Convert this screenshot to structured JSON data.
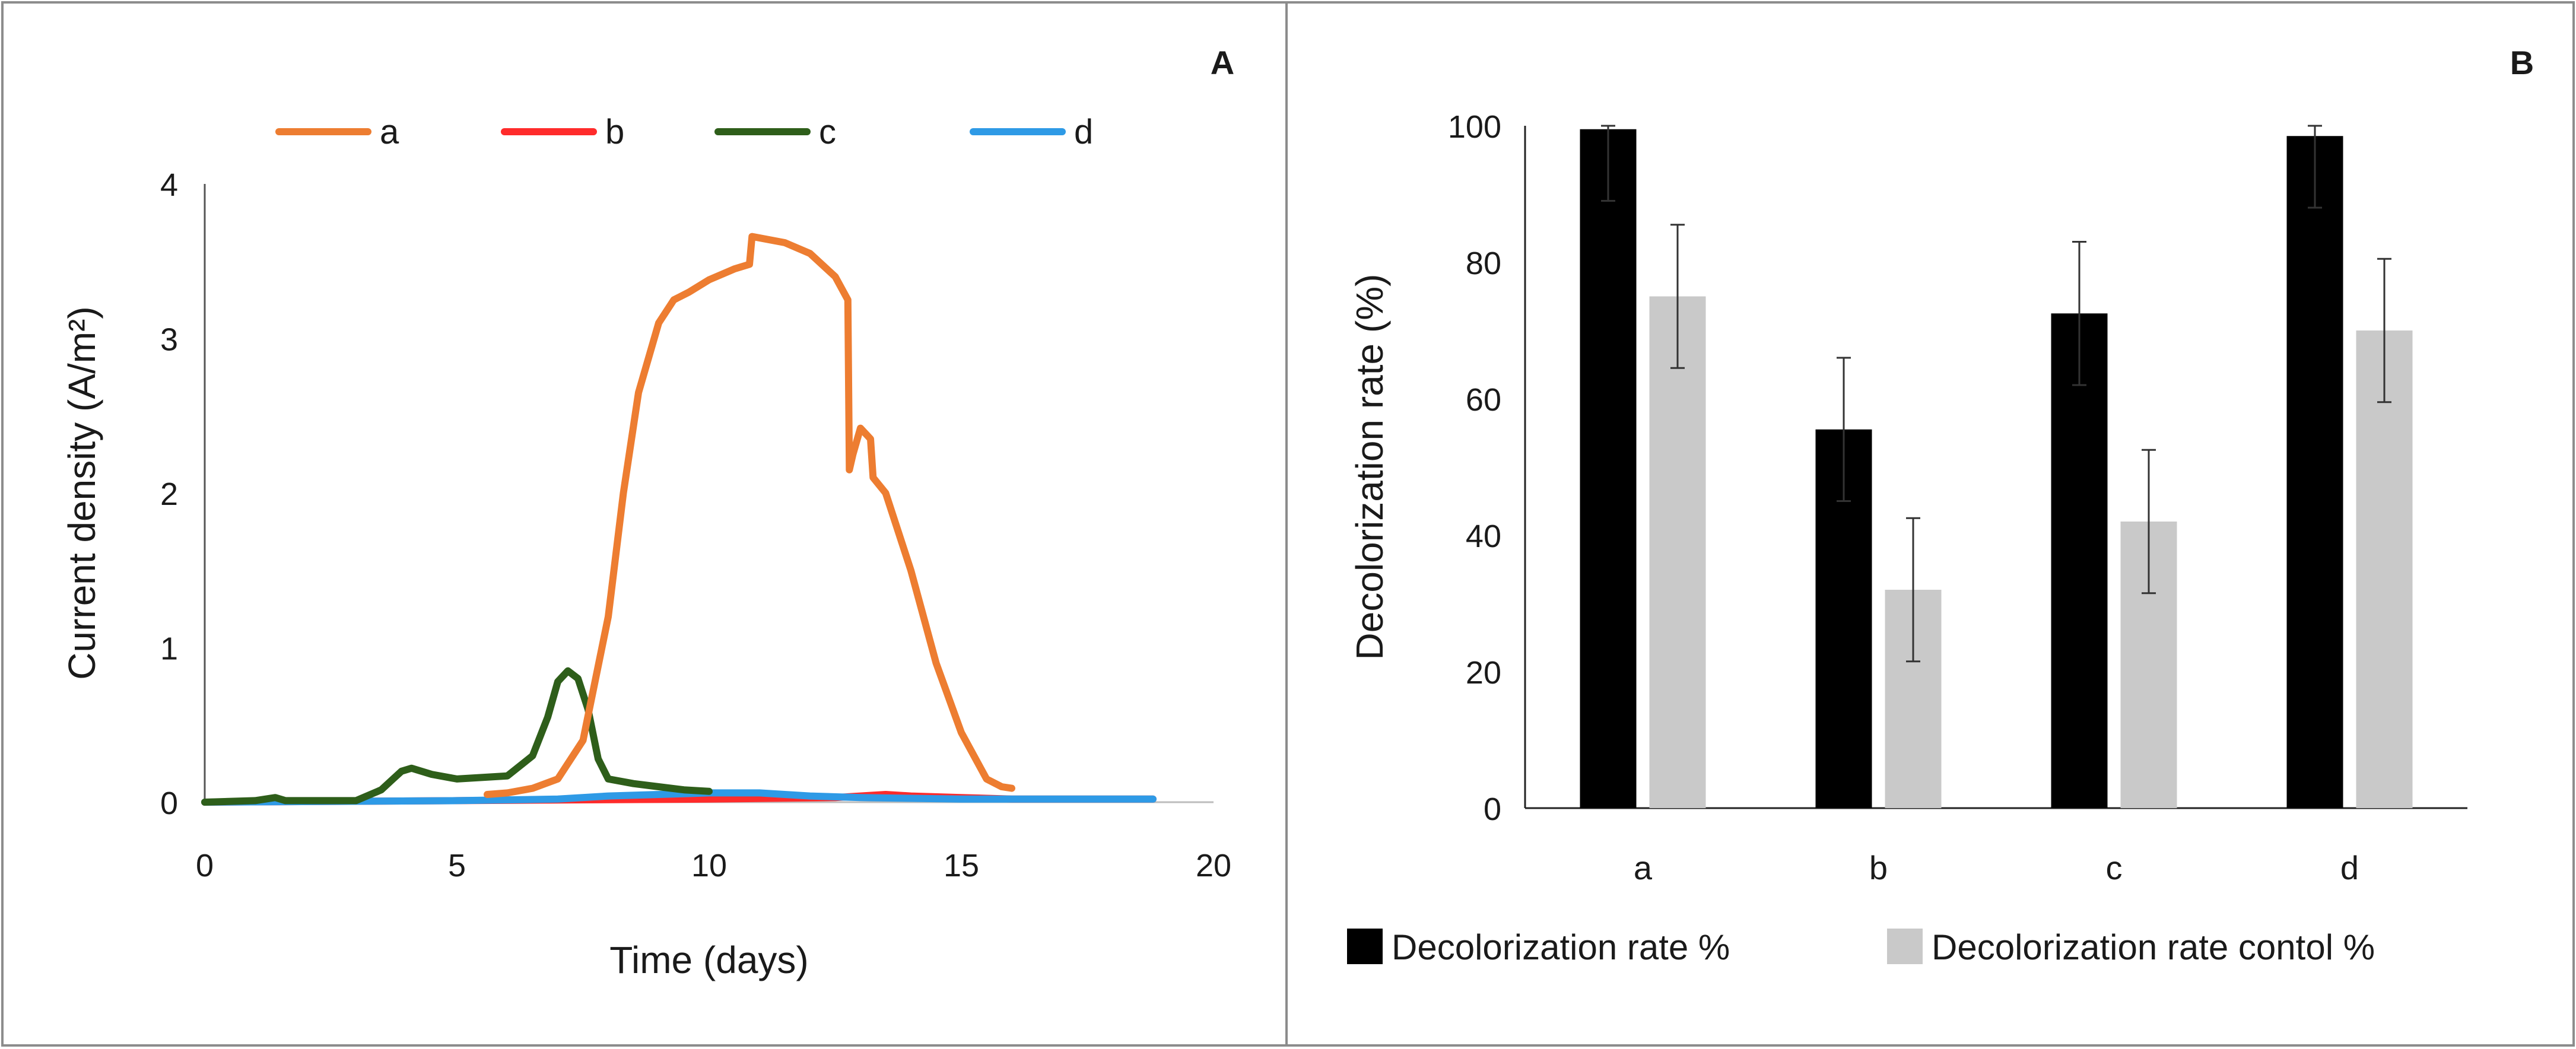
{
  "chart_data": [
    {
      "panel": "A",
      "type": "line",
      "title": "",
      "xlabel": "Time (days)",
      "ylabel": "Current density (A/m²)",
      "xlim": [
        0,
        20
      ],
      "ylim": [
        0,
        4
      ],
      "xticks": [
        "0",
        "5",
        "10",
        "15",
        "20"
      ],
      "yticks": [
        "0",
        "1",
        "2",
        "3",
        "4"
      ],
      "grid": false,
      "legend_position": "top",
      "series": [
        {
          "name": "a",
          "color": "#ED7D31",
          "x": [
            5.6,
            6,
            6.5,
            7,
            7.5,
            8,
            8.3,
            8.6,
            9,
            9.3,
            9.6,
            10,
            10.5,
            10.8,
            10.85,
            11.5,
            12,
            12.5,
            12.75,
            12.78,
            12.85,
            13,
            13.2,
            13.25,
            13.5,
            14,
            14.5,
            15,
            15.5,
            15.8,
            16
          ],
          "y": [
            0.05,
            0.06,
            0.09,
            0.15,
            0.4,
            1.2,
            2.0,
            2.65,
            3.1,
            3.25,
            3.3,
            3.38,
            3.45,
            3.48,
            3.66,
            3.62,
            3.55,
            3.4,
            3.25,
            2.15,
            2.25,
            2.42,
            2.35,
            2.1,
            2.0,
            1.5,
            0.9,
            0.45,
            0.15,
            0.1,
            0.09
          ]
        },
        {
          "name": "b",
          "color": "#FF2B2B",
          "x": [
            0,
            5,
            10,
            12.5,
            13,
            13.5,
            14,
            15,
            16,
            17,
            18.8
          ],
          "y": [
            0,
            0.01,
            0.02,
            0.03,
            0.04,
            0.05,
            0.04,
            0.03,
            0.02,
            0.02,
            0.02
          ]
        },
        {
          "name": "c",
          "color": "#2E5E1A",
          "x": [
            0,
            1,
            1.4,
            1.6,
            3,
            3.5,
            3.7,
            3.9,
            4.1,
            4.5,
            5,
            6,
            6.5,
            6.8,
            7,
            7.2,
            7.4,
            7.6,
            7.8,
            8,
            8.5,
            9,
            9.5,
            10
          ],
          "y": [
            0,
            0.01,
            0.03,
            0.01,
            0.01,
            0.08,
            0.14,
            0.2,
            0.22,
            0.18,
            0.15,
            0.17,
            0.3,
            0.55,
            0.78,
            0.85,
            0.8,
            0.6,
            0.28,
            0.15,
            0.12,
            0.1,
            0.08,
            0.07
          ]
        },
        {
          "name": "d",
          "color": "#2E9AE6",
          "x": [
            0,
            5,
            7,
            8,
            9,
            10,
            11,
            12,
            13,
            15,
            17,
            18.8
          ],
          "y": [
            0,
            0.01,
            0.02,
            0.04,
            0.05,
            0.06,
            0.06,
            0.04,
            0.03,
            0.02,
            0.02,
            0.02
          ]
        }
      ]
    },
    {
      "panel": "B",
      "type": "bar",
      "title": "",
      "xlabel": "",
      "ylabel": "Decolorization rate (%)",
      "categories": [
        "a",
        "b",
        "c",
        "d"
      ],
      "ylim": [
        0,
        100
      ],
      "yticks": [
        "0",
        "20",
        "40",
        "60",
        "80",
        "100"
      ],
      "grid": false,
      "legend_position": "bottom",
      "series": [
        {
          "name": "Decolorization rate %",
          "color": "#000000",
          "values": [
            99.5,
            55.5,
            72.5,
            98.5
          ],
          "errors": [
            10.5,
            10.5,
            10.5,
            10.5
          ]
        },
        {
          "name": "Decolorization rate contol %",
          "color": "#C9C9C9",
          "values": [
            75,
            32,
            42,
            70
          ],
          "errors": [
            10.5,
            10.5,
            10.5,
            10.5
          ]
        }
      ]
    }
  ]
}
